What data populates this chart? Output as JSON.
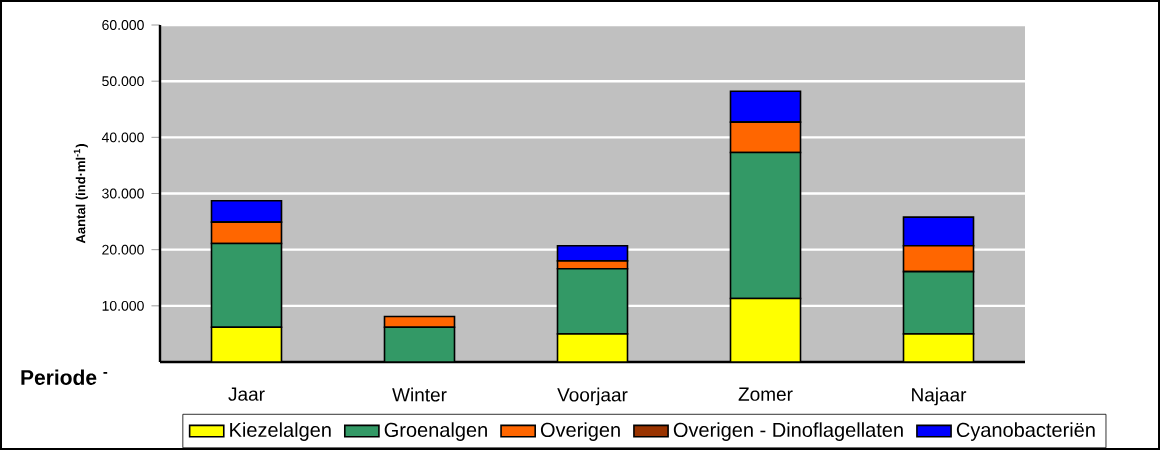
{
  "chart_data": {
    "type": "bar",
    "stacked": true,
    "xlabel": "Periode $^{-}$",
    "ylabel": "Aantal (ind·ml$^{-1}$)",
    "categories": [
      "Jaar",
      "Winter",
      "Voorjaar",
      "Zomer",
      "Najaar"
    ],
    "series": [
      {
        "name": "Kiezelalgen",
        "color": "#ffff00",
        "values": [
          6200,
          0,
          5000,
          11300,
          5000
        ]
      },
      {
        "name": "Groenalgen",
        "color": "#339966",
        "values": [
          14900,
          6200,
          11600,
          26000,
          11100
        ]
      },
      {
        "name": "Overigen",
        "color": "#ff6600",
        "values": [
          3800,
          1900,
          1400,
          5400,
          4600
        ]
      },
      {
        "name": "Overigen - Dinoflagellaten",
        "color": "#993300",
        "values": [
          0,
          0,
          0,
          0,
          0
        ]
      },
      {
        "name": "Cyanobacteriën",
        "color": "#0000ff",
        "values": [
          3800,
          0,
          2700,
          5500,
          5100
        ]
      }
    ],
    "ylim": [
      0,
      60000
    ],
    "yticks": [
      {
        "value": 10000,
        "label": "10.000"
      },
      {
        "value": 20000,
        "label": "20.000"
      },
      {
        "value": 30000,
        "label": "30.000"
      },
      {
        "value": 40000,
        "label": "40.000"
      },
      {
        "value": 50000,
        "label": "50.000"
      },
      {
        "value": 60000,
        "label": "60.000"
      }
    ],
    "grid": "y",
    "legend": "bottom"
  }
}
